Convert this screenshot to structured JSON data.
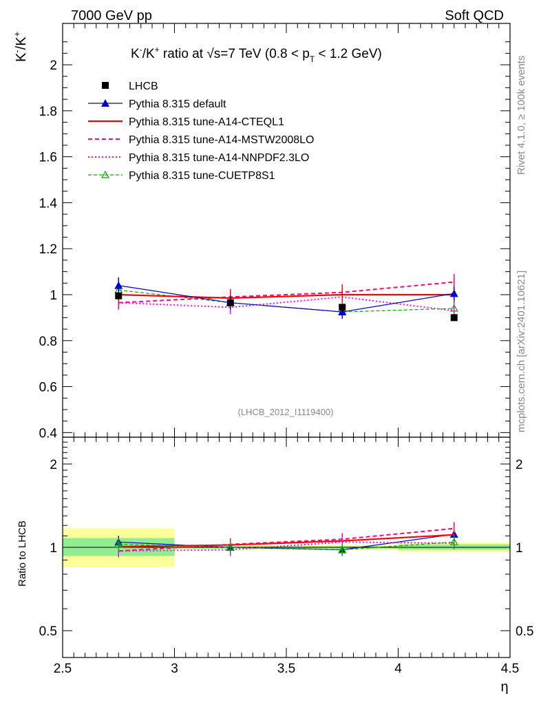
{
  "header": {
    "left": "7000 GeV pp",
    "right": "Soft QCD"
  },
  "side_labels": {
    "rivet": "Rivet 4.1.0, ≥ 100k events",
    "mcplots": "mcplots.cern.ch [arXiv:2401.10621]"
  },
  "colors": {
    "lhcb": "#000000",
    "default": "#0000cc",
    "cteql1": "#ff0000",
    "mstw": "#ff0080",
    "nnpdf": "#ff00ff",
    "cuetp": "#00aa00",
    "band_inner": "#90ee90",
    "band_outer": "#ffff99"
  },
  "chart_data": [
    {
      "type": "line",
      "panel": "main",
      "title": "K⁻/K⁺ ratio at √s=7 TeV (0.8 < p_T < 1.2 GeV)",
      "title_parts": {
        "a": "K",
        "b": "-",
        "c": "/K",
        "d": "+",
        "e": " ratio at ",
        "f": "√",
        "g": "s=7 TeV (0.8 < p",
        "h": "T",
        "i": " < 1.2 GeV)"
      },
      "ylabel_parts": {
        "a": "K",
        "b": "-",
        "c": "/K",
        "d": "+"
      },
      "xlabel": "η",
      "xlim": [
        2.5,
        4.5
      ],
      "ylim": [
        0.38,
        2.18
      ],
      "yticks": [
        0.4,
        0.6,
        0.8,
        1,
        1.2,
        1.4,
        1.6,
        1.8,
        2
      ],
      "ytick_labels": [
        "0.4",
        "0.6",
        "0.8",
        "1",
        "1.2",
        "1.4",
        "1.6",
        "1.8",
        "2"
      ],
      "watermark": "(LHCB_2012_I1119400)",
      "x": [
        2.75,
        3.25,
        3.75,
        4.25
      ],
      "x_bins": [
        [
          2.5,
          3.0
        ],
        [
          3.0,
          3.5
        ],
        [
          3.5,
          4.0
        ],
        [
          4.0,
          4.5
        ]
      ],
      "series": [
        {
          "key": "lhcb",
          "name": "LHCB",
          "values": [
            0.995,
            0.965,
            0.945,
            0.9
          ],
          "errors": [
            0.015,
            0.015,
            0.015,
            0.015
          ]
        },
        {
          "key": "default",
          "name": "Pythia 8.315 default",
          "values": [
            1.04,
            0.965,
            0.925,
            1.005
          ],
          "errors": [
            0.035,
            0.03,
            0.03,
            0.03
          ]
        },
        {
          "key": "cteql1",
          "name": "Pythia 8.315 tune-A14-CTEQL1",
          "values": [
            1.0,
            0.985,
            1.0,
            1.0
          ],
          "errors": [
            0.03,
            0.03,
            0.03,
            0.03
          ]
        },
        {
          "key": "mstw",
          "name": "Pythia 8.315 tune-A14-MSTW2008LO",
          "values": [
            0.965,
            0.99,
            1.01,
            1.055
          ],
          "errors": [
            0.03,
            0.035,
            0.035,
            0.035
          ]
        },
        {
          "key": "nnpdf",
          "name": "Pythia 8.315 tune-A14-NNPDF2.3LO",
          "values": [
            0.965,
            0.945,
            0.99,
            0.93
          ],
          "errors": [
            0.03,
            0.03,
            0.03,
            0.03
          ]
        },
        {
          "key": "cuetp",
          "name": "Pythia 8.315 tune-CUETP8S1",
          "values": [
            1.02,
            0.965,
            0.925,
            0.94
          ],
          "errors": [
            0.03,
            0.03,
            0.03,
            0.03
          ]
        }
      ]
    },
    {
      "type": "line",
      "panel": "ratio",
      "ylabel": "Ratio to LHCB",
      "xlabel": "η",
      "yscale": "log",
      "xlim": [
        2.5,
        4.5
      ],
      "ylim": [
        0.4,
        2.5
      ],
      "yticks": [
        0.5,
        1,
        2
      ],
      "ytick_labels": [
        "0.5",
        "1",
        "2"
      ],
      "xticks": [
        2.5,
        3,
        3.5,
        4,
        4.5
      ],
      "xtick_labels": [
        "2.5",
        "3",
        "3.5",
        "4",
        "4.5"
      ],
      "x": [
        2.75,
        3.25,
        3.75,
        4.25
      ],
      "bands": [
        {
          "x0": 2.5,
          "x1": 3.0,
          "inner": [
            0.93,
            1.08
          ],
          "outer": [
            0.85,
            1.17
          ]
        },
        {
          "x0": 3.0,
          "x1": 3.5,
          "inner": [
            0.99,
            1.01
          ],
          "outer": [
            0.98,
            1.02
          ]
        },
        {
          "x0": 3.5,
          "x1": 4.0,
          "inner": [
            0.99,
            1.01
          ],
          "outer": [
            0.98,
            1.02
          ]
        },
        {
          "x0": 4.0,
          "x1": 4.5,
          "inner": [
            0.98,
            1.025
          ],
          "outer": [
            0.96,
            1.04
          ]
        }
      ],
      "series": [
        {
          "key": "default",
          "values": [
            1.045,
            1.0,
            0.98,
            1.115
          ]
        },
        {
          "key": "cteql1",
          "values": [
            1.005,
            1.02,
            1.055,
            1.11
          ]
        },
        {
          "key": "mstw",
          "values": [
            0.97,
            1.025,
            1.07,
            1.17
          ]
        },
        {
          "key": "nnpdf",
          "values": [
            0.97,
            0.98,
            1.045,
            1.035
          ]
        },
        {
          "key": "cuetp",
          "values": [
            1.025,
            1.0,
            0.98,
            1.045
          ]
        }
      ]
    }
  ]
}
